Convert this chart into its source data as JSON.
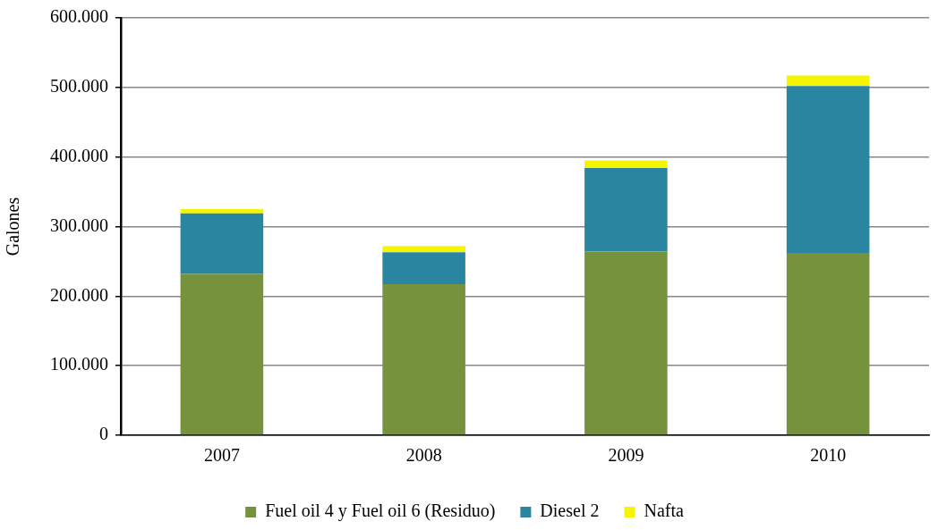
{
  "chart_data": {
    "type": "bar",
    "stacked": true,
    "categories": [
      "2007",
      "2008",
      "2009",
      "2010"
    ],
    "ylabel": "Galones",
    "ylim": [
      0,
      600000
    ],
    "yticks": [
      {
        "value": 0,
        "label": "0"
      },
      {
        "value": 100000,
        "label": "100.000"
      },
      {
        "value": 200000,
        "label": "200.000"
      },
      {
        "value": 300000,
        "label": "300.000"
      },
      {
        "value": 400000,
        "label": "400.000"
      },
      {
        "value": 500000,
        "label": "500.000"
      },
      {
        "value": 600000,
        "label": "600.000"
      }
    ],
    "series": [
      {
        "name": "Fuel oil 4 y Fuel oil 6 (Residuo)",
        "color": "#76923c",
        "values": [
          232000,
          217000,
          264000,
          262000
        ]
      },
      {
        "name": "Diesel 2",
        "color": "#2a86a0",
        "values": [
          87000,
          46000,
          120000,
          240000
        ]
      },
      {
        "name": "Nafta",
        "color": "#f5f500",
        "values": [
          6000,
          9000,
          11000,
          15000
        ]
      }
    ],
    "grid": "y",
    "legend": "bottom"
  }
}
